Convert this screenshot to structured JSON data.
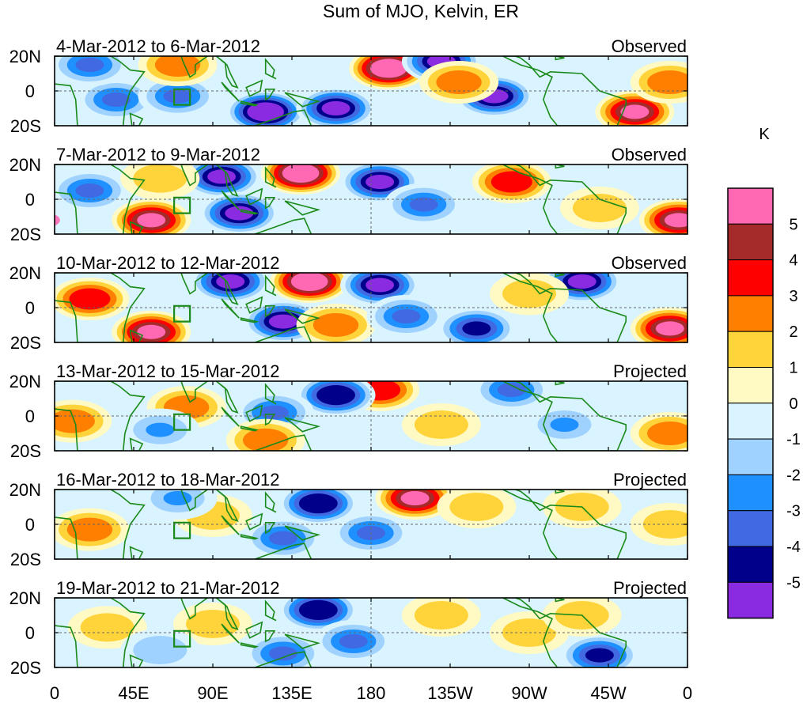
{
  "chart_data": {
    "type": "heatmap",
    "title": "Sum of MJO, Kelvin, ER",
    "x_ticks": [
      "0",
      "45E",
      "90E",
      "135E",
      "180",
      "135W",
      "90W",
      "45W",
      "0"
    ],
    "x_range": [
      0,
      360
    ],
    "y_ticks": [
      "20N",
      "0",
      "20S"
    ],
    "y_range": [
      -20,
      20
    ],
    "colorbar": {
      "unit": "K",
      "levels": [
        "5",
        "4",
        "3",
        "2",
        "1",
        "0",
        "-1",
        "-2",
        "-3",
        "-4",
        "-5"
      ],
      "colors": [
        "#ff69b4",
        "#a52a2a",
        "#ff0000",
        "#ff7f00",
        "#ffd43b",
        "#fff9c4",
        "#d9f4ff",
        "#9fd2ff",
        "#1e90ff",
        "#4169e1",
        "#00008b",
        "#8a2be2"
      ]
    },
    "panels": [
      {
        "period": "4-Mar-2012 to 6-Mar-2012",
        "label": "Observed",
        "features": [
          {
            "lon": 190,
            "lat": 13,
            "value": 6
          },
          {
            "lon": 120,
            "lat": -12,
            "value": -5.5
          },
          {
            "lon": 160,
            "lat": -10,
            "value": -5
          },
          {
            "lon": 220,
            "lat": 17,
            "value": -5
          },
          {
            "lon": 250,
            "lat": -3,
            "value": -5
          },
          {
            "lon": 330,
            "lat": -12,
            "value": 5
          },
          {
            "lon": 350,
            "lat": 5,
            "value": 3
          },
          {
            "lon": 35,
            "lat": -5,
            "value": -3
          },
          {
            "lon": 70,
            "lat": -3,
            "value": -3
          },
          {
            "lon": 230,
            "lat": 5,
            "value": 3
          },
          {
            "lon": 70,
            "lat": 15,
            "value": 3
          },
          {
            "lon": 20,
            "lat": 15,
            "value": -3
          }
        ]
      },
      {
        "period": "7-Mar-2012 to 9-Mar-2012",
        "label": "Observed",
        "features": [
          {
            "lon": 140,
            "lat": 15,
            "value": 6
          },
          {
            "lon": 95,
            "lat": 13,
            "value": -5
          },
          {
            "lon": 185,
            "lat": 10,
            "value": -5
          },
          {
            "lon": 105,
            "lat": -8,
            "value": -5
          },
          {
            "lon": 260,
            "lat": 10,
            "value": 4
          },
          {
            "lon": 55,
            "lat": -12,
            "value": 5
          },
          {
            "lon": 355,
            "lat": -12,
            "value": 5
          },
          {
            "lon": 20,
            "lat": 5,
            "value": -3
          },
          {
            "lon": 210,
            "lat": -3,
            "value": -3
          },
          {
            "lon": 310,
            "lat": -5,
            "value": 2
          },
          {
            "lon": 60,
            "lat": 12,
            "value": 2
          }
        ]
      },
      {
        "period": "10-Mar-2012 to 12-Mar-2012",
        "label": "Observed",
        "features": [
          {
            "lon": 145,
            "lat": 15,
            "value": 6
          },
          {
            "lon": 100,
            "lat": 15,
            "value": -5
          },
          {
            "lon": 185,
            "lat": 13,
            "value": -5
          },
          {
            "lon": 130,
            "lat": -8,
            "value": -5
          },
          {
            "lon": 55,
            "lat": -14,
            "value": 5
          },
          {
            "lon": 20,
            "lat": 5,
            "value": 3.5
          },
          {
            "lon": 160,
            "lat": -10,
            "value": 3
          },
          {
            "lon": 300,
            "lat": 15,
            "value": -5
          },
          {
            "lon": 240,
            "lat": -12,
            "value": -4
          },
          {
            "lon": 350,
            "lat": -12,
            "value": 5
          },
          {
            "lon": 200,
            "lat": -5,
            "value": -3
          },
          {
            "lon": 270,
            "lat": 8,
            "value": 2
          }
        ]
      },
      {
        "period": "13-Mar-2012 to 15-Mar-2012",
        "label": "Projected",
        "features": [
          {
            "lon": 185,
            "lat": 15,
            "value": 3.5
          },
          {
            "lon": 160,
            "lat": 12,
            "value": -4.5
          },
          {
            "lon": 125,
            "lat": 2,
            "value": -3
          },
          {
            "lon": 10,
            "lat": -3,
            "value": 3
          },
          {
            "lon": 75,
            "lat": 5,
            "value": 2.5
          },
          {
            "lon": 120,
            "lat": -14,
            "value": 2.5
          },
          {
            "lon": 260,
            "lat": 15,
            "value": -3
          },
          {
            "lon": 350,
            "lat": -10,
            "value": 3
          },
          {
            "lon": 220,
            "lat": -5,
            "value": 2
          },
          {
            "lon": 290,
            "lat": -5,
            "value": -2
          },
          {
            "lon": 60,
            "lat": -8,
            "value": -2
          }
        ]
      },
      {
        "period": "16-Mar-2012 to 18-Mar-2012",
        "label": "Projected",
        "features": [
          {
            "lon": 205,
            "lat": 15,
            "value": 5
          },
          {
            "lon": 150,
            "lat": 12,
            "value": -4.5
          },
          {
            "lon": 130,
            "lat": -8,
            "value": -3
          },
          {
            "lon": 180,
            "lat": -5,
            "value": -3
          },
          {
            "lon": 20,
            "lat": -3,
            "value": 2.5
          },
          {
            "lon": 90,
            "lat": 5,
            "value": 2
          },
          {
            "lon": 240,
            "lat": 10,
            "value": 2
          },
          {
            "lon": 300,
            "lat": 10,
            "value": 2
          },
          {
            "lon": 70,
            "lat": 15,
            "value": -2
          },
          {
            "lon": 350,
            "lat": 0,
            "value": 2
          }
        ]
      },
      {
        "period": "19-Mar-2012 to 21-Mar-2012",
        "label": "Projected",
        "features": [
          {
            "lon": 150,
            "lat": 13,
            "value": -4.5
          },
          {
            "lon": 170,
            "lat": -5,
            "value": -3
          },
          {
            "lon": 130,
            "lat": -12,
            "value": -3
          },
          {
            "lon": 310,
            "lat": -13,
            "value": -4
          },
          {
            "lon": 220,
            "lat": 10,
            "value": 2
          },
          {
            "lon": 30,
            "lat": 3,
            "value": 2
          },
          {
            "lon": 90,
            "lat": 5,
            "value": 1.5
          },
          {
            "lon": 270,
            "lat": 0,
            "value": 1.5
          },
          {
            "lon": 300,
            "lat": 10,
            "value": 2
          },
          {
            "lon": 60,
            "lat": -10,
            "value": -1.5
          }
        ]
      }
    ]
  }
}
